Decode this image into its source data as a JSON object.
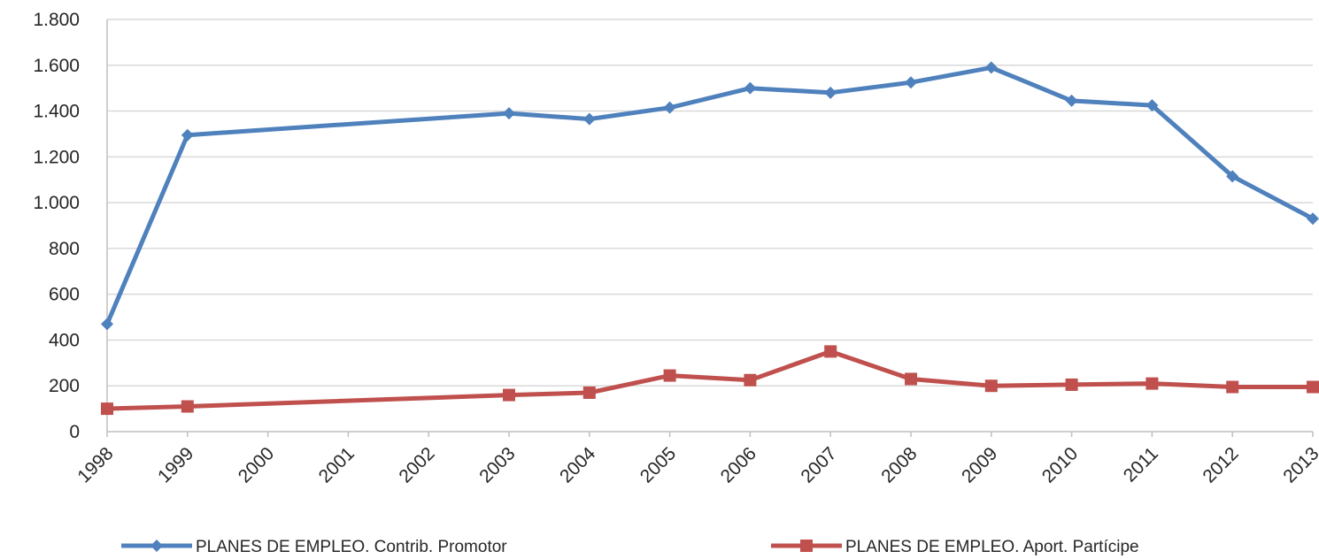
{
  "chart_data": {
    "type": "line",
    "title": "",
    "xlabel": "",
    "ylabel": "",
    "x": [
      "1998",
      "1999",
      "2000",
      "2001",
      "2002",
      "2003",
      "2004",
      "2005",
      "2006",
      "2007",
      "2008",
      "2009",
      "2010",
      "2011",
      "2012",
      "2013"
    ],
    "ylim": [
      0,
      1800
    ],
    "y_ticks": [
      0,
      200,
      400,
      600,
      800,
      1000,
      1200,
      1400,
      1600,
      1800
    ],
    "y_tick_labels": [
      "0",
      "200",
      "400",
      "600",
      "800",
      "1.000",
      "1.200",
      "1.400",
      "1.600",
      "1.800"
    ],
    "grid": "horizontal",
    "legend_position": "bottom",
    "series": [
      {
        "name": "PLANES DE EMPLEO. Contrib. Promotor",
        "color": "#4F81BD",
        "marker": "diamond",
        "points": [
          {
            "x": "1998",
            "y": 470
          },
          {
            "x": "1999",
            "y": 1295
          },
          {
            "x": "2003",
            "y": 1390
          },
          {
            "x": "2004",
            "y": 1365
          },
          {
            "x": "2005",
            "y": 1415
          },
          {
            "x": "2006",
            "y": 1500
          },
          {
            "x": "2007",
            "y": 1480
          },
          {
            "x": "2008",
            "y": 1525
          },
          {
            "x": "2009",
            "y": 1590
          },
          {
            "x": "2010",
            "y": 1445
          },
          {
            "x": "2011",
            "y": 1425
          },
          {
            "x": "2012",
            "y": 1115
          },
          {
            "x": "2013",
            "y": 930
          }
        ]
      },
      {
        "name": "PLANES DE EMPLEO. Aport. Partícipe",
        "color": "#C0504D",
        "marker": "square",
        "points": [
          {
            "x": "1998",
            "y": 100
          },
          {
            "x": "1999",
            "y": 110
          },
          {
            "x": "2003",
            "y": 160
          },
          {
            "x": "2004",
            "y": 170
          },
          {
            "x": "2005",
            "y": 245
          },
          {
            "x": "2006",
            "y": 225
          },
          {
            "x": "2007",
            "y": 350
          },
          {
            "x": "2008",
            "y": 230
          },
          {
            "x": "2009",
            "y": 200
          },
          {
            "x": "2010",
            "y": 205
          },
          {
            "x": "2011",
            "y": 210
          },
          {
            "x": "2012",
            "y": 195
          },
          {
            "x": "2013",
            "y": 195
          }
        ]
      }
    ]
  }
}
